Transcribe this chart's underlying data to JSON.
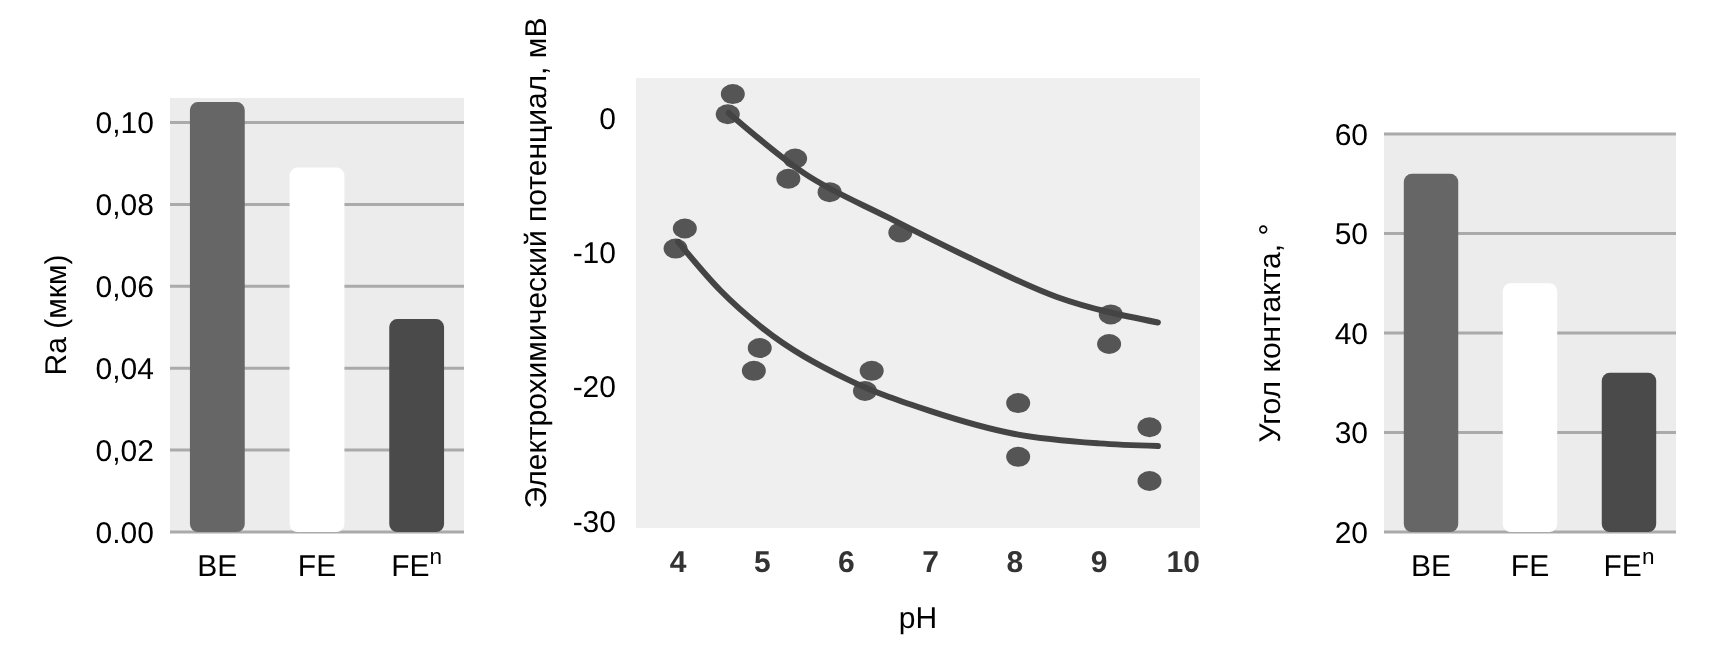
{
  "chart_data": [
    {
      "type": "bar",
      "ylabel": "Ra (мкм)",
      "categories": [
        "BE",
        "FE",
        "FE$^{n}$"
      ],
      "colors": [
        "#666666",
        "#ffffff",
        "#4a4a4a"
      ],
      "values": [
        0.105,
        0.089,
        0.052
      ],
      "ylim": [
        0,
        0.106
      ],
      "yticks": [
        {
          "value": 0,
          "label": "0.00"
        },
        {
          "value": 0.02,
          "label": "0,02"
        },
        {
          "value": 0.04,
          "label": "0,04"
        },
        {
          "value": 0.06,
          "label": "0,06"
        },
        {
          "value": 0.08,
          "label": "0,08"
        },
        {
          "value": 0.1,
          "label": "0,10"
        }
      ],
      "grid": "y"
    },
    {
      "type": "scatter",
      "xlabel": "pH",
      "ylabel": "Электрохимический потенциал, мВ",
      "xlim": [
        3.5,
        10.2
      ],
      "xticks": [
        4,
        5,
        6,
        7,
        8,
        9,
        10
      ],
      "ylim": [
        -30.5,
        3
      ],
      "yticks": [
        0,
        -10,
        -20,
        -30
      ],
      "marker": "circle",
      "series": [
        {
          "color": "#555555",
          "x": [
            4.65,
            4.59,
            5.39,
            5.31,
            5.8,
            6.64,
            9.14,
            9.12
          ],
          "values": [
            1.8,
            0.3,
            -3.0,
            -4.5,
            -5.5,
            -8.5,
            -14.6,
            -16.8
          ]
        },
        {
          "color": "#555555",
          "x": [
            4.08,
            3.97,
            4.97,
            4.9,
            6.3,
            6.22,
            8.04,
            8.04,
            9.6,
            9.6
          ],
          "values": [
            -8.2,
            -9.7,
            -17.1,
            -18.8,
            -18.8,
            -20.3,
            -21.2,
            -25.2,
            -23,
            -27
          ]
        },
        {
          "type": "line",
          "marker": "none",
          "color": "#444444",
          "x": [
            4.6,
            5.5,
            6.5,
            7.5,
            8.5,
            9.7
          ],
          "values": [
            0.4,
            -4.1,
            -7.4,
            -10.5,
            -13.3,
            -15.2
          ]
        },
        {
          "type": "line",
          "marker": "none",
          "color": "#444444",
          "x": [
            4.0,
            4.5,
            5,
            6,
            7,
            8,
            9,
            9.7
          ],
          "values": [
            -9.2,
            -12.8,
            -15.6,
            -19.4,
            -21.8,
            -23.5,
            -24.2,
            -24.4
          ]
        }
      ]
    },
    {
      "type": "bar",
      "ylabel": "Угол контакта, °",
      "categories": [
        "BE",
        "FE",
        "FE$^{n}$"
      ],
      "colors": [
        "#666666",
        "#ffffff",
        "#4a4a4a"
      ],
      "values": [
        56,
        45,
        36
      ],
      "ylim": [
        20,
        60
      ],
      "yticks": [
        20,
        30,
        40,
        50,
        60
      ],
      "grid": "y"
    }
  ]
}
